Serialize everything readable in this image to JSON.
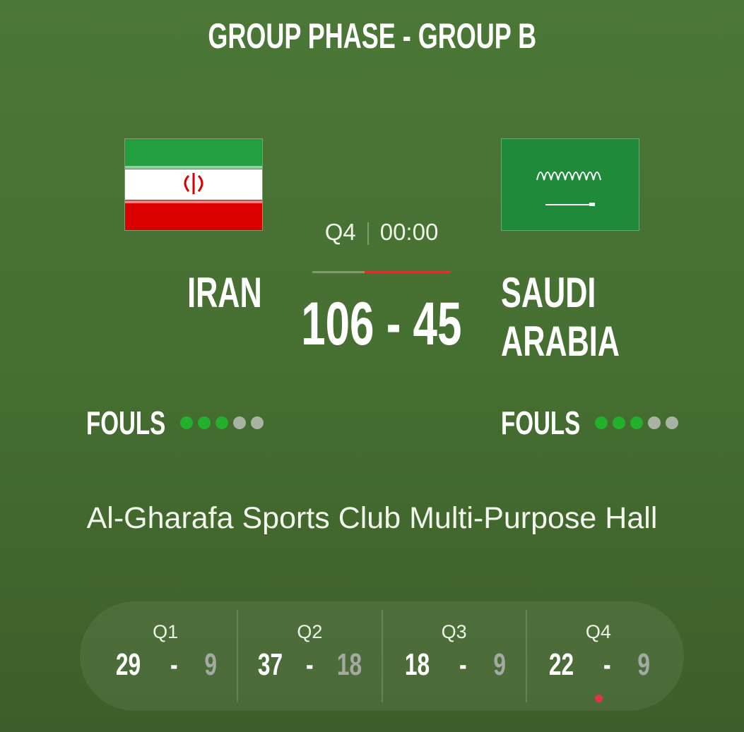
{
  "header": {
    "title": "GROUP PHASE - GROUP B"
  },
  "clock": {
    "period": "Q4",
    "time": "00:00",
    "progress_home_fraction": 0.38
  },
  "home": {
    "name": "IRAN",
    "score": "106",
    "fouls": 3,
    "fouls_max": 5,
    "flag": "iran-flag"
  },
  "away": {
    "name": "SAUDI ARABIA",
    "score": "45",
    "fouls": 3,
    "fouls_max": 5,
    "flag": "saudi-arabia-flag"
  },
  "score_separator": "-",
  "fouls_label": "FOULS",
  "venue": "Al-Gharafa Sports Club Multi-Purpose Hall",
  "quarters": [
    {
      "label": "Q1",
      "home": "29",
      "sep": "-",
      "away": "9"
    },
    {
      "label": "Q2",
      "home": "37",
      "sep": "-",
      "away": "18"
    },
    {
      "label": "Q3",
      "home": "18",
      "sep": "-",
      "away": "9"
    },
    {
      "label": "Q4",
      "home": "22",
      "sep": "-",
      "away": "9",
      "live": true
    }
  ],
  "colors": {
    "foul_active": "#23b02c",
    "foul_inactive": "#a9b3a3",
    "live": "#e0344a"
  }
}
